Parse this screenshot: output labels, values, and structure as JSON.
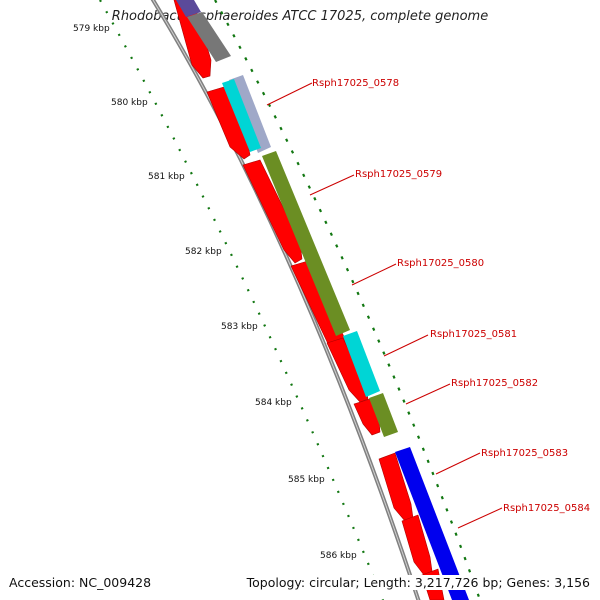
{
  "title": "Rhodobacter sphaeroides ATCC 17025, complete genome",
  "footer": {
    "accession": "Accession: NC_009428",
    "topology": "Topology: circular; Length: 3,217,726 bp; Genes: 3,156"
  },
  "ticks": [
    "579 kbp",
    "580 kbp",
    "581 kbp",
    "582 kbp",
    "583 kbp",
    "584 kbp",
    "585 kbp",
    "586 kbp"
  ],
  "genes": [
    "Rsph17025_0578",
    "Rsph17025_0579",
    "Rsph17025_0580",
    "Rsph17025_0581",
    "Rsph17025_0582",
    "Rsph17025_0583",
    "Rsph17025_0584"
  ],
  "colors": {
    "backbone": "#808080",
    "cds": "#ff0000",
    "ruler": "#117711",
    "olive": "#6b8e23",
    "cyan": "#00d5d5",
    "blue": "#0000ee",
    "gray": "#777777",
    "lightsteel": "#9fa8c8",
    "purple": "#5b4a9a",
    "label": "#cc0000"
  }
}
